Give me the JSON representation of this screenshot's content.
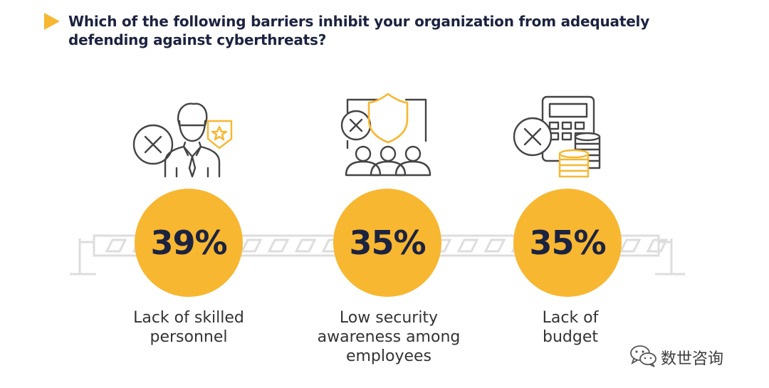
{
  "header": {
    "title": "Which of the following barriers inhibit your organization from adequately defending against cyberthreats?",
    "accent_color": "#f7b731",
    "title_color": "#1c2340"
  },
  "stats": [
    {
      "value": "39%",
      "label_lines": [
        "Lack of skilled",
        "personnel"
      ],
      "icon": "skilled-personnel-x-icon"
    },
    {
      "value": "35%",
      "label_lines": [
        "Low security",
        "awareness among",
        "employees"
      ],
      "icon": "security-awareness-x-icon"
    },
    {
      "value": "35%",
      "label_lines": [
        "Lack of",
        "budget"
      ],
      "icon": "budget-x-icon"
    }
  ],
  "watermark": {
    "text": "数世咨询",
    "icon": "wechat-icon"
  }
}
